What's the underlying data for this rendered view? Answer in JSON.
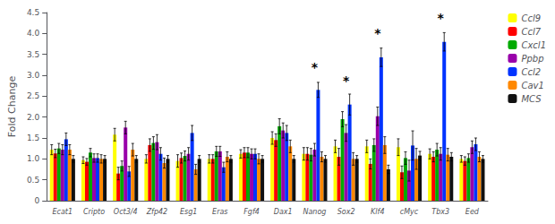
{
  "chart_data": {
    "type": "bar",
    "ylabel": "Fold Change",
    "categories": [
      "Ecat1",
      "Cripto",
      "Oct3/4",
      "Zfp42",
      "Esg1",
      "Eras",
      "Fgf4",
      "Dax1",
      "Nanog",
      "Sox2",
      "Klf4",
      "cMyc",
      "Tbx3",
      "Eed"
    ],
    "series": [
      {
        "name": "Ccl9",
        "color": "#FFFF00",
        "values": [
          1.22,
          0.97,
          1.58,
          1.0,
          0.95,
          1.0,
          1.12,
          1.5,
          1.12,
          1.3,
          1.3,
          1.28,
          1.12,
          1.0
        ],
        "errors": [
          0.12,
          0.08,
          0.15,
          0.1,
          0.15,
          0.1,
          0.1,
          0.15,
          0.15,
          0.15,
          0.15,
          0.2,
          0.12,
          0.08
        ]
      },
      {
        "name": "Ccl7",
        "color": "#FF0000",
        "values": [
          1.13,
          0.93,
          0.65,
          1.33,
          1.02,
          1.0,
          1.15,
          1.45,
          1.12,
          1.05,
          0.88,
          0.68,
          1.05,
          0.95
        ],
        "errors": [
          0.1,
          0.08,
          0.15,
          0.15,
          0.12,
          0.1,
          0.12,
          0.15,
          0.15,
          0.2,
          0.12,
          0.15,
          0.12,
          0.1
        ]
      },
      {
        "name": "Cxcl1",
        "color": "#00AA00",
        "values": [
          1.25,
          1.15,
          0.83,
          1.38,
          1.07,
          1.18,
          1.15,
          1.78,
          1.1,
          1.95,
          1.33,
          1.02,
          1.22,
          1.02
        ],
        "errors": [
          0.12,
          0.1,
          0.12,
          0.15,
          0.12,
          0.12,
          0.12,
          0.18,
          0.15,
          0.18,
          0.15,
          0.15,
          0.15,
          0.1
        ]
      },
      {
        "name": "Ppbp",
        "color": "#9900AA",
        "values": [
          1.22,
          1.02,
          1.75,
          1.4,
          1.12,
          1.18,
          1.12,
          1.68,
          1.22,
          1.62,
          2.02,
          0.72,
          1.12,
          1.28
        ],
        "errors": [
          0.12,
          0.1,
          0.15,
          0.18,
          0.15,
          0.12,
          0.12,
          0.18,
          0.15,
          0.2,
          0.22,
          0.25,
          0.15,
          0.15
        ]
      },
      {
        "name": "Ccl2",
        "color": "#0033FF",
        "values": [
          1.47,
          1.02,
          0.7,
          1.12,
          1.62,
          0.8,
          1.12,
          1.62,
          2.65,
          2.3,
          3.43,
          1.32,
          3.8,
          1.35
        ],
        "errors": [
          0.15,
          0.1,
          0.12,
          0.15,
          0.18,
          0.12,
          0.12,
          0.18,
          0.18,
          0.25,
          0.22,
          0.35,
          0.22,
          0.15
        ]
      },
      {
        "name": "Cav1",
        "color": "#FF8800",
        "values": [
          1.22,
          1.0,
          1.22,
          0.9,
          0.75,
          1.05,
          1.0,
          1.3,
          1.05,
          1.0,
          1.33,
          1.0,
          1.1,
          1.05
        ],
        "errors": [
          0.12,
          0.1,
          0.15,
          0.12,
          0.12,
          0.12,
          0.12,
          0.15,
          0.12,
          0.15,
          0.2,
          0.25,
          0.15,
          0.12
        ]
      },
      {
        "name": "MCS",
        "color": "#111111",
        "values": [
          1.0,
          1.0,
          1.0,
          1.0,
          1.0,
          1.0,
          1.0,
          1.0,
          1.0,
          1.0,
          0.75,
          1.08,
          1.05,
          1.0
        ],
        "errors": [
          0.08,
          0.08,
          0.08,
          0.08,
          0.08,
          0.08,
          0.08,
          0.08,
          0.08,
          0.08,
          0.1,
          0.1,
          0.1,
          0.08
        ]
      }
    ],
    "annotations": [
      {
        "text": "*",
        "category": "Nanog",
        "y": 3.05
      },
      {
        "text": "*",
        "category": "Sox2",
        "y": 2.72
      },
      {
        "text": "*",
        "category": "Klf4",
        "y": 3.85
      },
      {
        "text": "*",
        "category": "Tbx3",
        "y": 4.22
      }
    ],
    "ylim": [
      0,
      4.5
    ],
    "yticks": [
      0,
      0.5,
      {
        "value": 1.0,
        "label": "1.0"
      },
      1.5,
      {
        "value": 2.0,
        "label": "2.0"
      },
      2.5,
      {
        "value": 3.0,
        "label": "3.0"
      },
      3.5,
      {
        "value": 4.0,
        "label": "4.0"
      },
      4.5
    ],
    "grid": false,
    "legend": "right"
  }
}
